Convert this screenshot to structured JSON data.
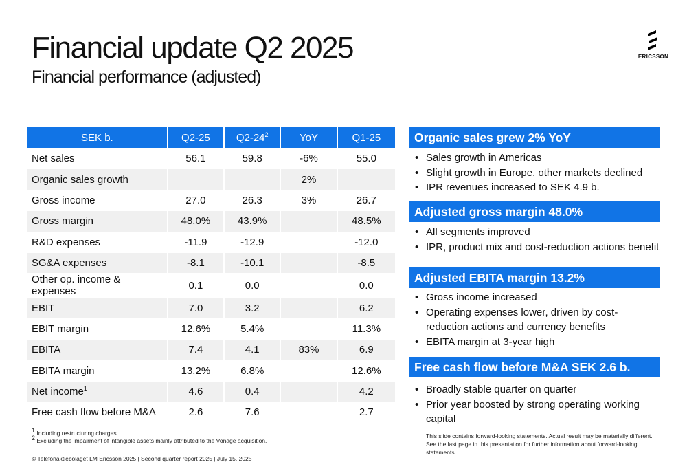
{
  "header": {
    "title": "Financial update Q2 2025",
    "subtitle": "Financial performance (adjusted)",
    "logo_text": "ERICSSON"
  },
  "table": {
    "columns": [
      "SEK b.",
      "Q2-25",
      "Q2-24",
      "YoY",
      "Q1-25"
    ],
    "q224_sup": "2",
    "rows": [
      {
        "label": "Net sales",
        "sup": "",
        "q225": "56.1",
        "q224": "59.8",
        "yoy": "-6%",
        "q125": "55.0"
      },
      {
        "label": "Organic sales growth",
        "sup": "",
        "q225": "",
        "q224": "",
        "yoy": "2%",
        "q125": ""
      },
      {
        "label": "Gross income",
        "sup": "",
        "q225": "27.0",
        "q224": "26.3",
        "yoy": "3%",
        "q125": "26.7"
      },
      {
        "label": "Gross margin",
        "sup": "",
        "q225": "48.0%",
        "q224": "43.9%",
        "yoy": "",
        "q125": "48.5%"
      },
      {
        "label": "R&D expenses",
        "sup": "",
        "q225": "-11.9",
        "q224": "-12.9",
        "yoy": "",
        "q125": "-12.0"
      },
      {
        "label": "SG&A expenses",
        "sup": "",
        "q225": "-8.1",
        "q224": "-10.1",
        "yoy": "",
        "q125": "-8.5"
      },
      {
        "label": "Other op. income & expenses",
        "sup": "",
        "q225": "0.1",
        "q224": "0.0",
        "yoy": "",
        "q125": "0.0"
      },
      {
        "label": "EBIT",
        "sup": "",
        "q225": "7.0",
        "q224": "3.2",
        "yoy": "",
        "q125": "6.2"
      },
      {
        "label": "EBIT margin",
        "sup": "",
        "q225": "12.6%",
        "q224": "5.4%",
        "yoy": "",
        "q125": "11.3%"
      },
      {
        "label": "EBITA",
        "sup": "",
        "q225": "7.4",
        "q224": "4.1",
        "yoy": "83%",
        "q125": "6.9"
      },
      {
        "label": "EBITA margin",
        "sup": "",
        "q225": "13.2%",
        "q224": "6.8%",
        "yoy": "",
        "q125": "12.6%"
      },
      {
        "label": "Net income",
        "sup": "1",
        "q225": "4.6",
        "q224": "0.4",
        "yoy": "",
        "q125": "4.2"
      },
      {
        "label": "Free cash flow before M&A",
        "sup": "",
        "q225": "2.6",
        "q224": "7.6",
        "yoy": "",
        "q125": "2.7"
      }
    ]
  },
  "footnotes": {
    "fn1_mark": "1",
    "fn1": "Including restructuring charges.",
    "fn2_mark": "2",
    "fn2": "Excluding the impairment of intangible assets mainly attributed to the Vonage acquisition."
  },
  "footer": "© Telefonaktiebolaget LM Ericsson 2025 | Second quarter report 2025 | July 15, 2025",
  "highlights": [
    {
      "heading": "Organic sales grew 2% YoY",
      "bullets": [
        "Sales growth in Americas",
        "Slight growth in Europe, other markets declined",
        "IPR revenues increased to SEK 4.9 b."
      ]
    },
    {
      "heading": "Adjusted gross margin 48.0%",
      "bullets": [
        "All segments improved",
        "IPR, product mix and cost-reduction actions benefit"
      ]
    },
    {
      "heading": "Adjusted EBITA margin 13.2%",
      "bullets": [
        "Gross income increased",
        "Operating expenses lower, driven by cost-reduction actions and currency benefits",
        "EBITA margin at 3-year high"
      ]
    },
    {
      "heading": "Free cash flow before M&A SEK 2.6 b.",
      "bullets": [
        "Broadly stable quarter on quarter",
        "Prior year boosted by strong operating working capital"
      ]
    }
  ],
  "disclaimer": "This slide contains forward-looking statements. Actual result may be materially different. See the last page in this presentation for further information about forward-looking statements.",
  "colors": {
    "accent": "#1174e6",
    "row_alt": "#f0f0f0"
  }
}
